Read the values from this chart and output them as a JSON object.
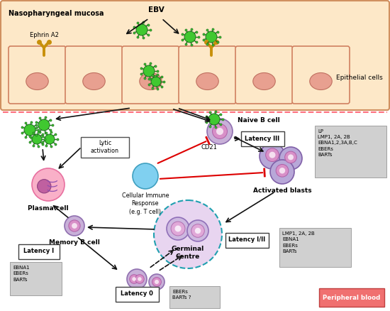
{
  "fig_width": 5.5,
  "fig_height": 4.38,
  "dpi": 100,
  "bg_color": "#ffffff",
  "mucosa_bg": "#fde8c8",
  "mucosa_border": "#d09060",
  "cell_fill": "#fde8c8",
  "epithelial_nucleus": "#e8a090",
  "pink_cell_fill": "#f9b0c8",
  "pink_cell_border": "#e870a0",
  "blue_cell_fill": "#80d0f0",
  "blue_cell_border": "#40a0c0",
  "purple_cell_fill": "#c8b0d8",
  "purple_cell_border": "#9070b0",
  "green_virus_fill": "#40c830",
  "green_virus_border": "#207020",
  "latency_box_fill": "#ffffff",
  "latency_box_border": "#404040",
  "info_box_fill": "#d0d0d0",
  "info_box_border": "#a0a0a0",
  "peripheral_box_fill": "#f07070",
  "peripheral_box_border": "#c04040",
  "arrow_color": "#101010",
  "red_arrow_color": "#dd0000",
  "dashed_border_color": "#20a0b0",
  "title_mucosa": "Nasopharyngeal mucosa",
  "label_EBV": "EBV",
  "label_ephrin": "Ephrin A2",
  "label_epithelial": "Epithelial cells",
  "label_naive_b": "Naive B cell",
  "label_cd21": "CD21",
  "label_lytic": "Lytic\nactivation",
  "label_plasma": "Plasma cell",
  "label_cellular": "Cellular Immune\nResponse\n(e.g. T cell)",
  "label_activated": "Activated blasts",
  "label_germinal": "Germinal\nCentre",
  "label_memory": "Memory B cell",
  "label_latency0": "Latency 0",
  "label_latency1": "Latency I",
  "label_latency12": "Latency I/II",
  "label_latency3": "Latency III",
  "label_peripheral": "Peripheral blood",
  "info_latency3": "LP\nLMP1, 2A, 2B\nEBNA1,2,3A,B,C\nEBERs\nBARTs",
  "info_latency12": "LMP1, 2A, 2B\nEBNA1\nEBERs\nBARTs",
  "info_latency1": "EBNA1\nEBERs\nBARTs",
  "info_latency0": "EBERs\nBARTs ?"
}
